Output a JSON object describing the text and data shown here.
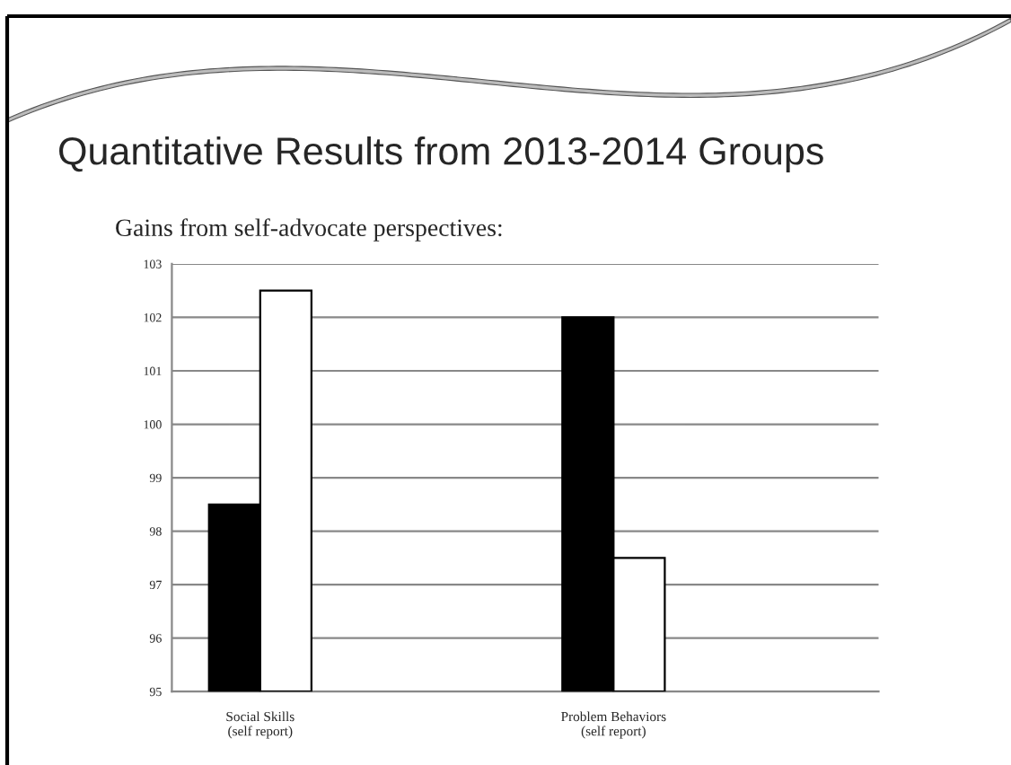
{
  "chart_data": {
    "type": "bar",
    "title": "Quantitative Results from 2013-2014 Groups",
    "subtitle": "Gains from self-advocate perspectives:",
    "categories": [
      "Social Skills\n(self report)",
      null,
      "Problem Behaviors\n(self report)",
      null
    ],
    "series": [
      {
        "color": "#000000",
        "values": [
          98.5,
          null,
          102,
          null
        ]
      },
      {
        "color": "#ffffff",
        "values": [
          102.5,
          null,
          97.5,
          null
        ]
      }
    ],
    "ylim": [
      95,
      103
    ],
    "yticks": [
      95,
      96,
      97,
      98,
      99,
      100,
      101,
      102,
      103
    ],
    "grid": "y",
    "legend": false
  }
}
